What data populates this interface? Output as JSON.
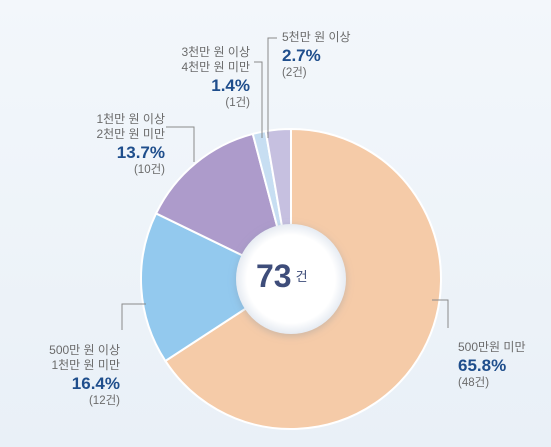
{
  "chart_data": {
    "type": "pie",
    "donut": true,
    "total": {
      "value": "73",
      "unit": "건"
    },
    "slices": [
      {
        "label_lines": [
          "500만원 미만"
        ],
        "percent": 65.8,
        "percent_label": "65.8%",
        "count_label": "(48건)",
        "color": "#f5cba8"
      },
      {
        "label_lines": [
          "500만 원  이상",
          "1천만 원 미만"
        ],
        "percent": 16.4,
        "percent_label": "16.4%",
        "count_label": "(12건)",
        "color": "#93c9ee"
      },
      {
        "label_lines": [
          "1천만 원 이상",
          "2천만 원 미만"
        ],
        "percent": 13.7,
        "percent_label": "13.7%",
        "count_label": "(10건)",
        "color": "#ad9bcb"
      },
      {
        "label_lines": [
          "3천만 원 이상",
          "4천만 원 미만"
        ],
        "percent": 1.4,
        "percent_label": "1.4%",
        "count_label": "(1건)",
        "color": "#c7def2"
      },
      {
        "label_lines": [
          "5천만 원 이상"
        ],
        "percent": 2.7,
        "percent_label": "2.7%",
        "count_label": "(2건)",
        "color": "#c6c0e0"
      }
    ]
  }
}
